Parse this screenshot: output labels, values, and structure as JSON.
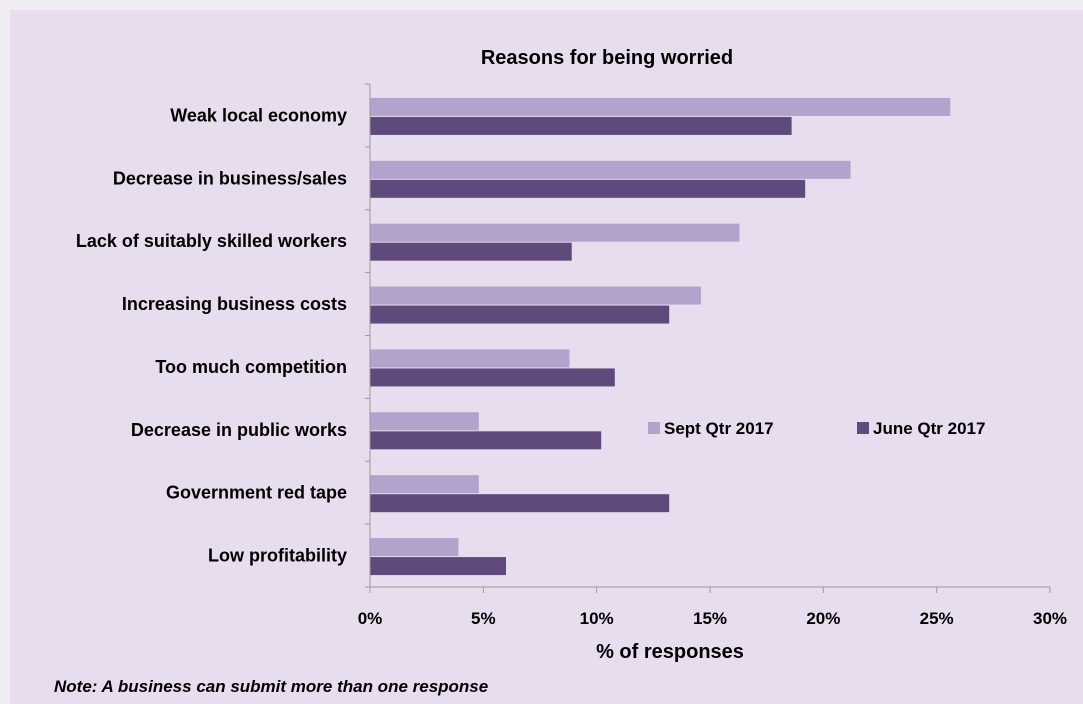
{
  "chart_data": {
    "type": "bar",
    "orientation": "horizontal",
    "title": "Reasons for being worried",
    "xlabel": "% of responses",
    "ylabel": "",
    "categories": [
      "Weak local economy",
      "Decrease in business/sales",
      "Lack of suitably skilled workers",
      "Increasing business costs",
      "Too much competition",
      "Decrease in public works",
      "Government red tape",
      "Low profitability"
    ],
    "series": [
      {
        "name": "Sept Qtr 2017",
        "color": "#b3a2cb",
        "values": [
          25.6,
          21.2,
          16.3,
          14.6,
          8.8,
          4.8,
          4.8,
          3.9
        ]
      },
      {
        "name": "June Qtr 2017",
        "color": "#604a7b",
        "values": [
          18.6,
          19.2,
          8.9,
          13.2,
          10.8,
          10.2,
          13.2,
          6.0
        ]
      }
    ],
    "xlim": [
      0,
      30
    ],
    "xticks": [
      0,
      5,
      10,
      15,
      20,
      25,
      30
    ],
    "xtick_labels": [
      "0%",
      "5%",
      "10%",
      "15%",
      "20%",
      "25%",
      "30%"
    ],
    "legend_position": "right-middle",
    "grid": false
  },
  "note": "Note: A business can submit more than one response"
}
